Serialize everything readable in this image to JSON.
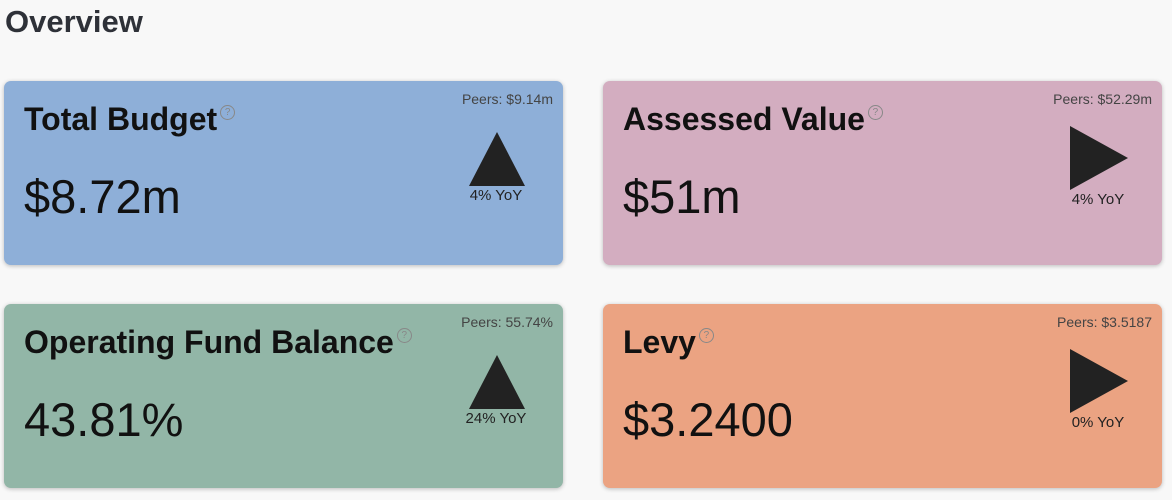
{
  "header": {
    "title": "Overview"
  },
  "cards": [
    {
      "title": "Total Budget",
      "help": "?",
      "value": "$8.72m",
      "peers": "Peers: $9.14m",
      "yoy": "4% YoY",
      "arrow": "up",
      "color": "#8eafd8"
    },
    {
      "title": "Assessed Value",
      "help": "?",
      "value": "$51m",
      "peers": "Peers: $52.29m",
      "yoy": "4% YoY",
      "arrow": "right",
      "color": "#d3adc0"
    },
    {
      "title": "Operating Fund Balance",
      "help": "?",
      "value": "43.81%",
      "peers": "Peers: 55.74%",
      "yoy": "24% YoY",
      "arrow": "up",
      "color": "#92b6a7"
    },
    {
      "title": "Levy",
      "help": "?",
      "value": "$3.2400",
      "peers": "Peers: $3.5187",
      "yoy": "0% YoY",
      "arrow": "right",
      "color": "#eba382"
    }
  ]
}
